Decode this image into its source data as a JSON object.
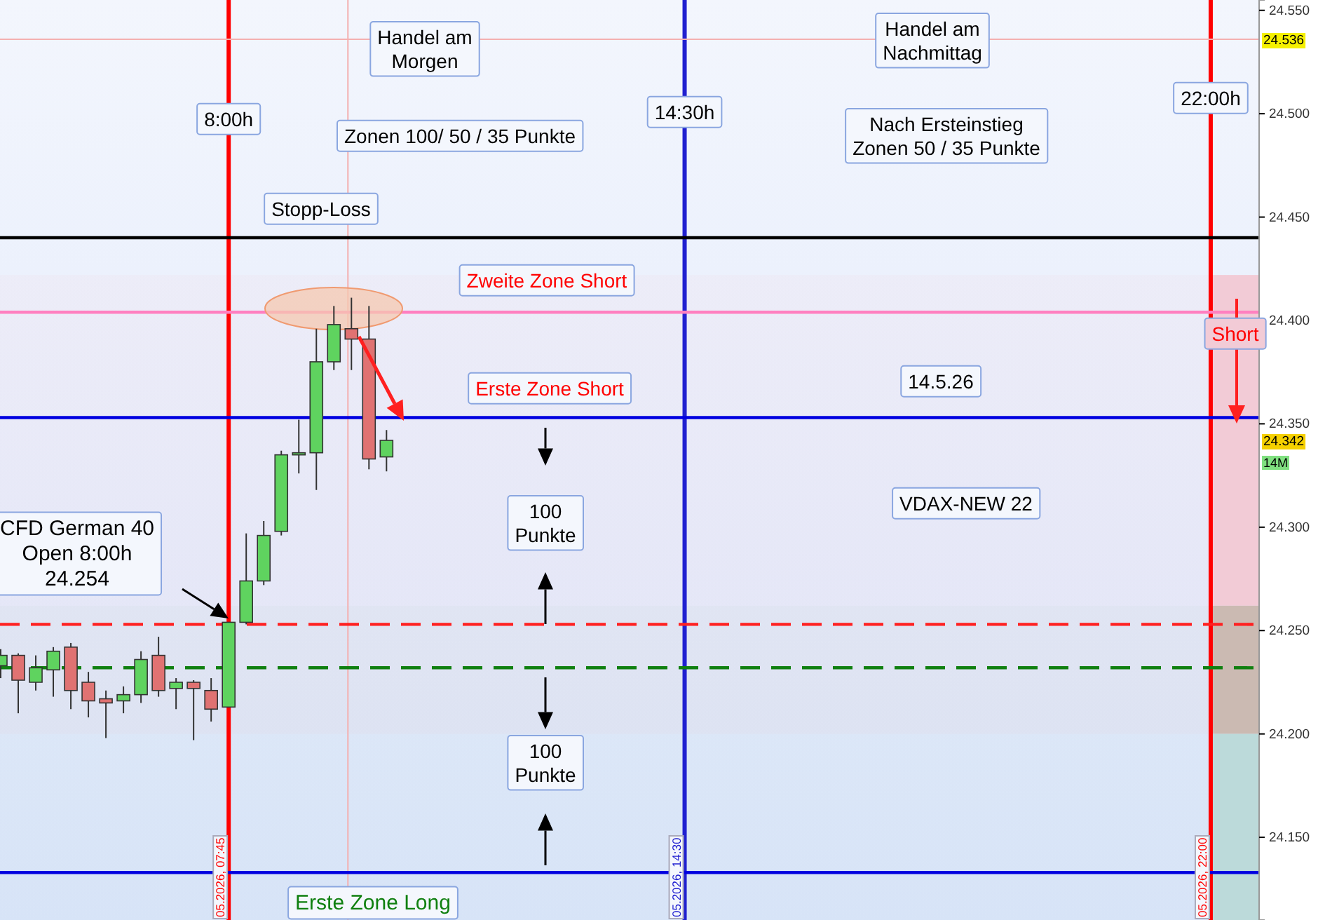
{
  "chart_data": {
    "type": "candlestick",
    "x": [
      4.75,
      5,
      5.25,
      5.5,
      5.75,
      6,
      6.25,
      6.5,
      6.75,
      7,
      7.25,
      7.5,
      7.75,
      8,
      8.25,
      8.5,
      8.75,
      9,
      9.25,
      9.5,
      9.75,
      10,
      10.25
    ],
    "ohlc": [
      [
        24.233,
        24.241,
        24.227,
        24.238
      ],
      [
        24.238,
        24.239,
        24.21,
        24.226
      ],
      [
        24.225,
        24.238,
        24.221,
        24.232
      ],
      [
        24.231,
        24.242,
        24.218,
        24.24
      ],
      [
        24.242,
        24.244,
        24.212,
        24.221
      ],
      [
        24.225,
        24.23,
        24.208,
        24.216
      ],
      [
        24.217,
        24.221,
        24.198,
        24.215
      ],
      [
        24.216,
        24.223,
        24.21,
        24.219
      ],
      [
        24.219,
        24.24,
        24.215,
        24.236
      ],
      [
        24.238,
        24.247,
        24.218,
        24.221
      ],
      [
        24.222,
        24.227,
        24.212,
        24.225
      ],
      [
        24.225,
        24.226,
        24.197,
        24.222
      ],
      [
        24.221,
        24.227,
        24.206,
        24.212
      ],
      [
        24.213,
        24.254,
        24.213,
        24.254
      ],
      [
        24.254,
        24.297,
        24.253,
        24.274
      ],
      [
        24.274,
        24.303,
        24.272,
        24.296
      ],
      [
        24.298,
        24.337,
        24.296,
        24.335
      ],
      [
        24.335,
        24.352,
        24.326,
        24.336
      ],
      [
        24.336,
        24.396,
        24.318,
        24.38
      ],
      [
        24.38,
        24.407,
        24.376,
        24.398
      ],
      [
        24.396,
        24.411,
        24.376,
        24.391
      ],
      [
        24.391,
        24.407,
        24.328,
        24.333
      ],
      [
        24.334,
        24.347,
        24.327,
        24.342
      ]
    ],
    "colors": [
      "#5fd35f",
      "#e07272",
      "#5fd35f",
      "#5fd35f",
      "#e07272",
      "#e07272",
      "#e07272",
      "#5fd35f",
      "#5fd35f",
      "#e07272",
      "#5fd35f",
      "#e07272",
      "#e07272",
      "#5fd35f",
      "#5fd35f",
      "#5fd35f",
      "#5fd35f",
      "#5fd35f",
      "#5fd35f",
      "#5fd35f",
      "#e07272",
      "#e07272",
      "#5fd35f"
    ],
    "xlim": [
      4.74,
      22.69
    ],
    "ylim": [
      24.11,
      24.555
    ],
    "yticks": [
      {
        "value": 24.15,
        "label": "24.150"
      },
      {
        "value": 24.2,
        "label": "24.200"
      },
      {
        "value": 24.25,
        "label": "24.250"
      },
      {
        "value": 24.3,
        "label": "24.300"
      },
      {
        "value": 24.35,
        "label": "24.350"
      },
      {
        "value": 24.4,
        "label": "24.400"
      },
      {
        "value": 24.45,
        "label": "24.450"
      },
      {
        "value": 24.5,
        "label": "24.500"
      },
      {
        "value": 24.55,
        "label": "24.550"
      }
    ],
    "tick_labels": "y",
    "ref_lines": [
      {
        "axis": "x",
        "value": 8,
        "label": "8:00h",
        "color": "#ff0000"
      },
      {
        "axis": "x",
        "value": 14.5,
        "label": "14:30h",
        "color": "#2020d0"
      },
      {
        "axis": "x",
        "value": 22,
        "label": "22:00h",
        "color": "#ff0000"
      },
      {
        "axis": "x",
        "value": 9.7,
        "color": "#f4b0b0"
      },
      {
        "axis": "y",
        "value": 24.44,
        "color": "#000000"
      },
      {
        "axis": "y",
        "value": 24.404,
        "color": "#ff80c0"
      },
      {
        "axis": "y",
        "value": 24.353,
        "color": "#0000e0"
      },
      {
        "axis": "y",
        "value": 24.253,
        "color": "#ff2020",
        "line_style": "dashed"
      },
      {
        "axis": "y",
        "value": 24.232,
        "color": "#108010",
        "line_style": "dashed"
      },
      {
        "axis": "y",
        "value": 24.133,
        "color": "#0000e0"
      },
      {
        "axis": "y",
        "value": 24.536,
        "label": "24.536",
        "color": "#f4b0b0"
      }
    ],
    "bands": [
      {
        "axis": "y",
        "from": 24.262,
        "to": 24.422,
        "color": "#f2cbd6"
      },
      {
        "axis": "y",
        "from": 24.2,
        "to": 24.262,
        "color": "#cbbab2"
      },
      {
        "axis": "y",
        "from": 24.11,
        "to": 24.2,
        "color": "#bcdada"
      }
    ],
    "annotations": [
      "Handel am\nMorgen",
      "Zonen 100/ 50 / 35 Punkte",
      "Stopp-Loss",
      "Zweite Zone Short",
      "Erste Zone Short",
      "100\nPunkte",
      "100\nPunkte",
      "Erste Zone Long",
      "Handel am\nNachmittag",
      "Nach Ersteinstieg\nZonen 50 / 35 Punkte",
      "14.5.26",
      "VDAX-NEW 22",
      "CFD German 40\nOpen 8:00h\n24.254",
      "Short",
      "05.2026, 07:45",
      "05.2026, 14:30",
      "05.2026, 22:00",
      "14M",
      "24.342"
    ]
  }
}
